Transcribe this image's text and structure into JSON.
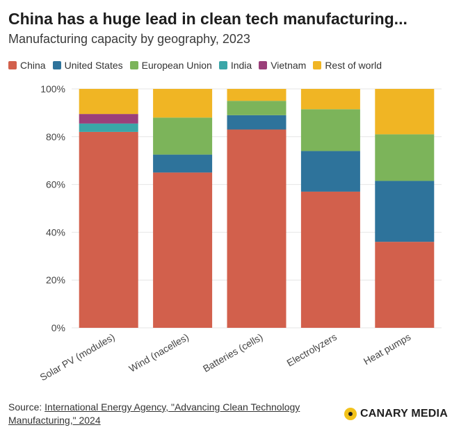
{
  "title": "China has a huge lead in clean tech manufacturing...",
  "subtitle": "Manufacturing capacity by geography, 2023",
  "colors": {
    "China": "#d2604c",
    "United States": "#2e739b",
    "European Union": "#7cb45a",
    "India": "#3aa6a8",
    "Vietnam": "#9b3f7a",
    "Rest of world": "#f0b524"
  },
  "source": {
    "prefix": "Source: ",
    "link_text": "International Energy Agency, \"Advancing Clean Technology Manufacturing,\" 2024"
  },
  "logo": {
    "text": "CANARY MEDIA"
  },
  "chart_data": {
    "type": "bar",
    "stacked": true,
    "title": "China has a huge lead in clean tech manufacturing...",
    "subtitle": "Manufacturing capacity by geography, 2023",
    "categories": [
      "Solar PV (modules)",
      "Wind (nacelles)",
      "Batteries (cells)",
      "Electrolyzers",
      "Heat pumps"
    ],
    "series": [
      {
        "name": "China",
        "values": [
          82,
          65,
          83,
          57,
          36
        ]
      },
      {
        "name": "United States",
        "values": [
          0,
          7.5,
          6,
          17,
          25.5
        ]
      },
      {
        "name": "European Union",
        "values": [
          0,
          15.5,
          6,
          17.5,
          19.5
        ]
      },
      {
        "name": "India",
        "values": [
          3.5,
          0,
          0,
          0,
          0
        ]
      },
      {
        "name": "Vietnam",
        "values": [
          4,
          0,
          0,
          0,
          0
        ]
      },
      {
        "name": "Rest of world",
        "values": [
          10.5,
          12,
          5,
          8.5,
          19
        ]
      }
    ],
    "ylim": [
      0,
      100
    ],
    "yticks": [
      "0%",
      "20%",
      "40%",
      "60%",
      "80%",
      "100%"
    ],
    "ytick_values": [
      0,
      20,
      40,
      60,
      80,
      100
    ],
    "grid": true,
    "legend": "top"
  }
}
